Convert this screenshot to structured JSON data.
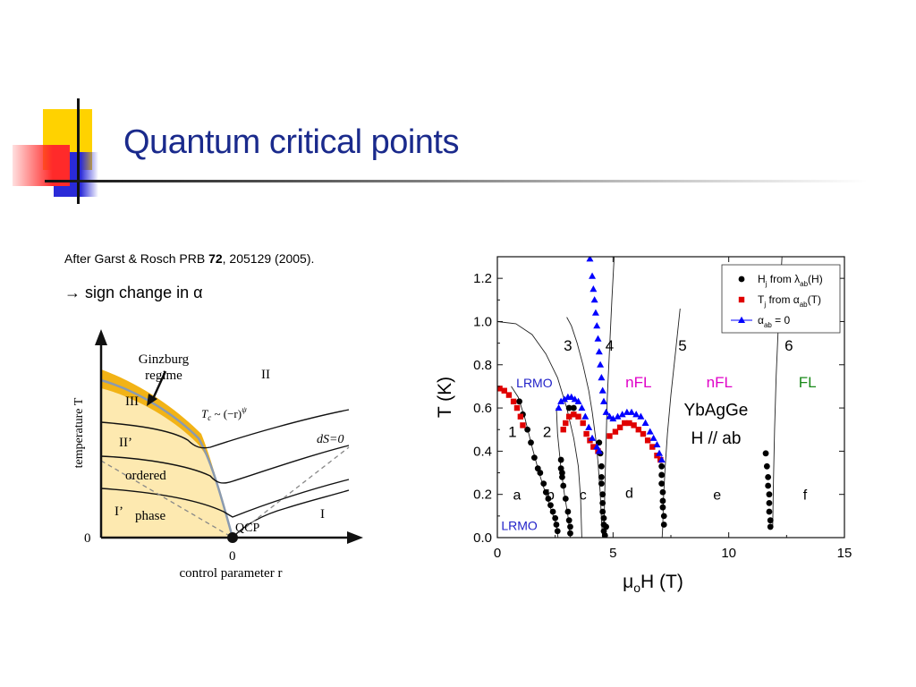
{
  "slide": {
    "title": "Quantum critical points",
    "citation": {
      "prefix": "After Garst & Rosch PRB ",
      "volume": "72",
      "suffix": ", 205129 (2005)."
    },
    "note": "→ sign change in α"
  },
  "colors": {
    "title": "#1a2a8c",
    "deco_yellow": "#ffd200",
    "deco_red": "#ff2a2a",
    "deco_blue": "#2a2ad8",
    "phase_fill": "#fde9b0",
    "ginzburg_band": "#f2b316",
    "hj_series": "#000000",
    "tj_series": "#e00000",
    "alpha_series": "#0000ff",
    "lrmo_label": "#1f1fc8",
    "nfl_label": "#e000c8",
    "fl_label": "#1a8a1a"
  },
  "chart_data": [
    {
      "type": "diagram",
      "xlabel": "control parameter r",
      "ylabel": "temperature T",
      "origin_labels": {
        "x": "0",
        "y": "0"
      },
      "annotations": {
        "ginzburg": [
          "Ginzburg",
          "regime"
        ],
        "region_II": "II",
        "region_III": "III",
        "region_IIp": "II’",
        "region_Ip": "I’",
        "ordered": "ordered",
        "phase": "phase",
        "tc": "T",
        "tc_sub": "c",
        "tc_rest": " ~ (−r)",
        "tc_sup": "ψ",
        "ds": "dS=0",
        "region_I": "I",
        "qcp": "QCP"
      }
    },
    {
      "type": "scatter",
      "xlabel": "μ",
      "xlabel_sub": "o",
      "xlabel_rest": "H (T)",
      "ylabel": "T (K)",
      "xlim": [
        0,
        15
      ],
      "ylim": [
        0,
        1.3
      ],
      "xticks": [
        "0",
        "5",
        "10",
        "15"
      ],
      "yticks": [
        "0.0",
        "0.2",
        "0.4",
        "0.6",
        "0.8",
        "1.0",
        "1.2"
      ],
      "legend_position": "top-right",
      "legend": [
        {
          "name": "H",
          "sub": "j",
          "mid": " from ",
          "greek": "λ",
          "greek_sub": "ab",
          "tail": "(H)"
        },
        {
          "name": "T",
          "sub": "j",
          "mid": " from ",
          "greek": "α",
          "greek_sub": "ab",
          "tail": "(T)"
        },
        {
          "name": "",
          "sub": "",
          "mid": "",
          "greek": "α",
          "greek_sub": "ab",
          "tail": " = 0"
        }
      ],
      "sample": [
        "YbAgGe",
        "H // ab"
      ],
      "line_labels": [
        {
          "text": "1",
          "x": 0.65,
          "y": 0.49
        },
        {
          "text": "2",
          "x": 2.15,
          "y": 0.49
        },
        {
          "text": "3",
          "x": 3.05,
          "y": 0.89
        },
        {
          "text": "4",
          "x": 4.85,
          "y": 0.89
        },
        {
          "text": "5",
          "x": 8.0,
          "y": 0.89
        },
        {
          "text": "6",
          "x": 12.6,
          "y": 0.89
        }
      ],
      "region_labels": [
        {
          "text": "a",
          "x": 0.85,
          "y": 0.2
        },
        {
          "text": "b",
          "x": 2.3,
          "y": 0.2
        },
        {
          "text": "c",
          "x": 3.7,
          "y": 0.2
        },
        {
          "text": "d",
          "x": 5.7,
          "y": 0.21
        },
        {
          "text": "e",
          "x": 9.5,
          "y": 0.2
        },
        {
          "text": "f",
          "x": 13.3,
          "y": 0.2
        }
      ],
      "phase_labels": [
        {
          "text": "LRMO",
          "x": 1.6,
          "y": 0.72,
          "kind": "lrmo"
        },
        {
          "text": "nFL",
          "x": 6.1,
          "y": 0.72,
          "kind": "nfl"
        },
        {
          "text": "nFL",
          "x": 9.6,
          "y": 0.72,
          "kind": "nfl"
        },
        {
          "text": "FL",
          "x": 13.4,
          "y": 0.72,
          "kind": "fl"
        },
        {
          "text": "LRMO",
          "x": 0.95,
          "y": 0.06,
          "kind": "lrmo"
        }
      ],
      "series": [
        {
          "name": "H_j from λ_ab(H)",
          "marker": "circle",
          "points": [
            [
              0.95,
              0.63
            ],
            [
              1.1,
              0.57
            ],
            [
              1.3,
              0.5
            ],
            [
              1.45,
              0.44
            ],
            [
              1.6,
              0.37
            ],
            [
              1.75,
              0.32
            ],
            [
              1.85,
              0.3
            ],
            [
              2.0,
              0.25
            ],
            [
              2.1,
              0.21
            ],
            [
              2.2,
              0.18
            ],
            [
              2.3,
              0.15
            ],
            [
              2.4,
              0.12
            ],
            [
              2.5,
              0.09
            ],
            [
              2.55,
              0.06
            ],
            [
              2.6,
              0.03
            ],
            [
              2.75,
              0.36
            ],
            [
              2.75,
              0.32
            ],
            [
              2.8,
              0.3
            ],
            [
              2.8,
              0.28
            ],
            [
              2.85,
              0.24
            ],
            [
              2.95,
              0.18
            ],
            [
              3.05,
              0.12
            ],
            [
              3.1,
              0.08
            ],
            [
              3.15,
              0.05
            ],
            [
              3.15,
              0.02
            ],
            [
              3.1,
              0.6
            ],
            [
              3.3,
              0.6
            ],
            [
              4.4,
              0.44
            ],
            [
              4.45,
              0.39
            ],
            [
              4.5,
              0.33
            ],
            [
              4.5,
              0.28
            ],
            [
              4.5,
              0.25
            ],
            [
              4.55,
              0.2
            ],
            [
              4.55,
              0.16
            ],
            [
              4.55,
              0.12
            ],
            [
              4.6,
              0.09
            ],
            [
              4.6,
              0.06
            ],
            [
              4.6,
              0.03
            ],
            [
              4.65,
              0.01
            ],
            [
              4.7,
              0.05
            ],
            [
              7.05,
              0.36
            ],
            [
              7.1,
              0.33
            ],
            [
              7.1,
              0.29
            ],
            [
              7.1,
              0.25
            ],
            [
              7.15,
              0.21
            ],
            [
              7.15,
              0.17
            ],
            [
              7.15,
              0.14
            ],
            [
              7.2,
              0.1
            ],
            [
              7.2,
              0.06
            ],
            [
              11.6,
              0.39
            ],
            [
              11.65,
              0.33
            ],
            [
              11.7,
              0.28
            ],
            [
              11.7,
              0.24
            ],
            [
              11.75,
              0.2
            ],
            [
              11.75,
              0.16
            ],
            [
              11.75,
              0.12
            ],
            [
              11.8,
              0.08
            ],
            [
              11.8,
              0.05
            ]
          ]
        },
        {
          "name": "T_j from α_ab(T)",
          "marker": "square",
          "points": [
            [
              0.1,
              0.69
            ],
            [
              0.3,
              0.68
            ],
            [
              0.5,
              0.66
            ],
            [
              0.7,
              0.63
            ],
            [
              0.85,
              0.6
            ],
            [
              1.0,
              0.56
            ],
            [
              1.1,
              0.52
            ],
            [
              2.85,
              0.5
            ],
            [
              2.95,
              0.53
            ],
            [
              3.1,
              0.56
            ],
            [
              3.3,
              0.57
            ],
            [
              3.5,
              0.56
            ],
            [
              3.7,
              0.53
            ],
            [
              3.85,
              0.48
            ],
            [
              4.0,
              0.45
            ],
            [
              4.15,
              0.42
            ],
            [
              4.35,
              0.4
            ],
            [
              4.85,
              0.47
            ],
            [
              5.1,
              0.49
            ],
            [
              5.3,
              0.51
            ],
            [
              5.5,
              0.53
            ],
            [
              5.7,
              0.53
            ],
            [
              5.9,
              0.52
            ],
            [
              6.1,
              0.5
            ],
            [
              6.3,
              0.48
            ],
            [
              6.5,
              0.45
            ],
            [
              6.7,
              0.42
            ],
            [
              6.9,
              0.38
            ],
            [
              7.05,
              0.36
            ]
          ]
        },
        {
          "name": "α_ab = 0",
          "marker": "triangle",
          "points": [
            [
              2.65,
              0.6
            ],
            [
              2.75,
              0.63
            ],
            [
              2.9,
              0.64
            ],
            [
              3.05,
              0.65
            ],
            [
              3.2,
              0.65
            ],
            [
              3.35,
              0.64
            ],
            [
              3.5,
              0.63
            ],
            [
              3.65,
              0.6
            ],
            [
              3.8,
              0.56
            ],
            [
              3.95,
              0.51
            ],
            [
              4.1,
              0.46
            ],
            [
              4.3,
              0.42
            ],
            [
              4.4,
              0.4
            ],
            [
              4.0,
              1.29
            ],
            [
              4.1,
              1.21
            ],
            [
              4.15,
              1.15
            ],
            [
              4.2,
              1.1
            ],
            [
              4.25,
              1.04
            ],
            [
              4.3,
              0.98
            ],
            [
              4.35,
              0.92
            ],
            [
              4.4,
              0.86
            ],
            [
              4.45,
              0.8
            ],
            [
              4.5,
              0.74
            ],
            [
              4.55,
              0.68
            ],
            [
              4.6,
              0.63
            ],
            [
              4.7,
              0.58
            ],
            [
              4.85,
              0.56
            ],
            [
              5.0,
              0.55
            ],
            [
              5.2,
              0.56
            ],
            [
              5.4,
              0.57
            ],
            [
              5.6,
              0.58
            ],
            [
              5.8,
              0.58
            ],
            [
              6.0,
              0.57
            ],
            [
              6.2,
              0.56
            ],
            [
              6.4,
              0.53
            ],
            [
              6.6,
              0.49
            ],
            [
              6.75,
              0.46
            ],
            [
              6.9,
              0.43
            ],
            [
              7.0,
              0.39
            ],
            [
              7.1,
              0.36
            ]
          ]
        }
      ],
      "boundary_lines": [
        {
          "label": "LRMO boundary",
          "points": [
            [
              0,
              1.0
            ],
            [
              0.8,
              0.99
            ],
            [
              1.5,
              0.94
            ],
            [
              2.1,
              0.85
            ],
            [
              2.6,
              0.74
            ],
            [
              3.0,
              0.6
            ],
            [
              3.3,
              0.46
            ],
            [
              3.5,
              0.33
            ],
            [
              3.6,
              0.18
            ],
            [
              3.65,
              0.0
            ]
          ]
        },
        {
          "label": "line 1",
          "points": [
            [
              0.6,
              0.7
            ],
            [
              0.9,
              0.65
            ],
            [
              1.2,
              0.55
            ],
            [
              1.5,
              0.42
            ],
            [
              1.8,
              0.3
            ],
            [
              2.1,
              0.2
            ],
            [
              2.35,
              0.12
            ],
            [
              2.55,
              0.06
            ],
            [
              2.62,
              0.0
            ]
          ]
        },
        {
          "label": "line 2",
          "points": [
            [
              2.55,
              0.6
            ],
            [
              2.6,
              0.48
            ],
            [
              2.75,
              0.32
            ],
            [
              2.9,
              0.2
            ],
            [
              3.05,
              0.1
            ],
            [
              3.15,
              0.0
            ]
          ]
        },
        {
          "label": "line 3",
          "points": [
            [
              3.0,
              1.02
            ],
            [
              3.2,
              0.98
            ],
            [
              3.45,
              0.9
            ],
            [
              3.7,
              0.8
            ],
            [
              3.95,
              0.68
            ],
            [
              4.1,
              0.58
            ],
            [
              4.25,
              0.46
            ],
            [
              4.35,
              0.35
            ],
            [
              4.45,
              0.2
            ],
            [
              4.5,
              0.08
            ],
            [
              4.55,
              0.0
            ]
          ]
        },
        {
          "label": "line 4",
          "points": [
            [
              5.05,
              1.3
            ],
            [
              4.95,
              1.1
            ],
            [
              4.85,
              0.88
            ],
            [
              4.75,
              0.65
            ],
            [
              4.7,
              0.45
            ],
            [
              4.65,
              0.25
            ],
            [
              4.62,
              0.1
            ],
            [
              4.6,
              0.0
            ]
          ]
        },
        {
          "label": "line 5",
          "points": [
            [
              7.9,
              1.06
            ],
            [
              7.7,
              0.86
            ],
            [
              7.5,
              0.66
            ],
            [
              7.35,
              0.48
            ],
            [
              7.25,
              0.32
            ],
            [
              7.18,
              0.18
            ],
            [
              7.15,
              0.05
            ],
            [
              7.12,
              0.0
            ]
          ]
        },
        {
          "label": "line 6",
          "points": [
            [
              12.3,
              1.3
            ],
            [
              12.15,
              1.0
            ],
            [
              12.05,
              0.75
            ],
            [
              11.98,
              0.5
            ],
            [
              11.93,
              0.25
            ],
            [
              11.9,
              0.05
            ]
          ]
        }
      ]
    }
  ]
}
